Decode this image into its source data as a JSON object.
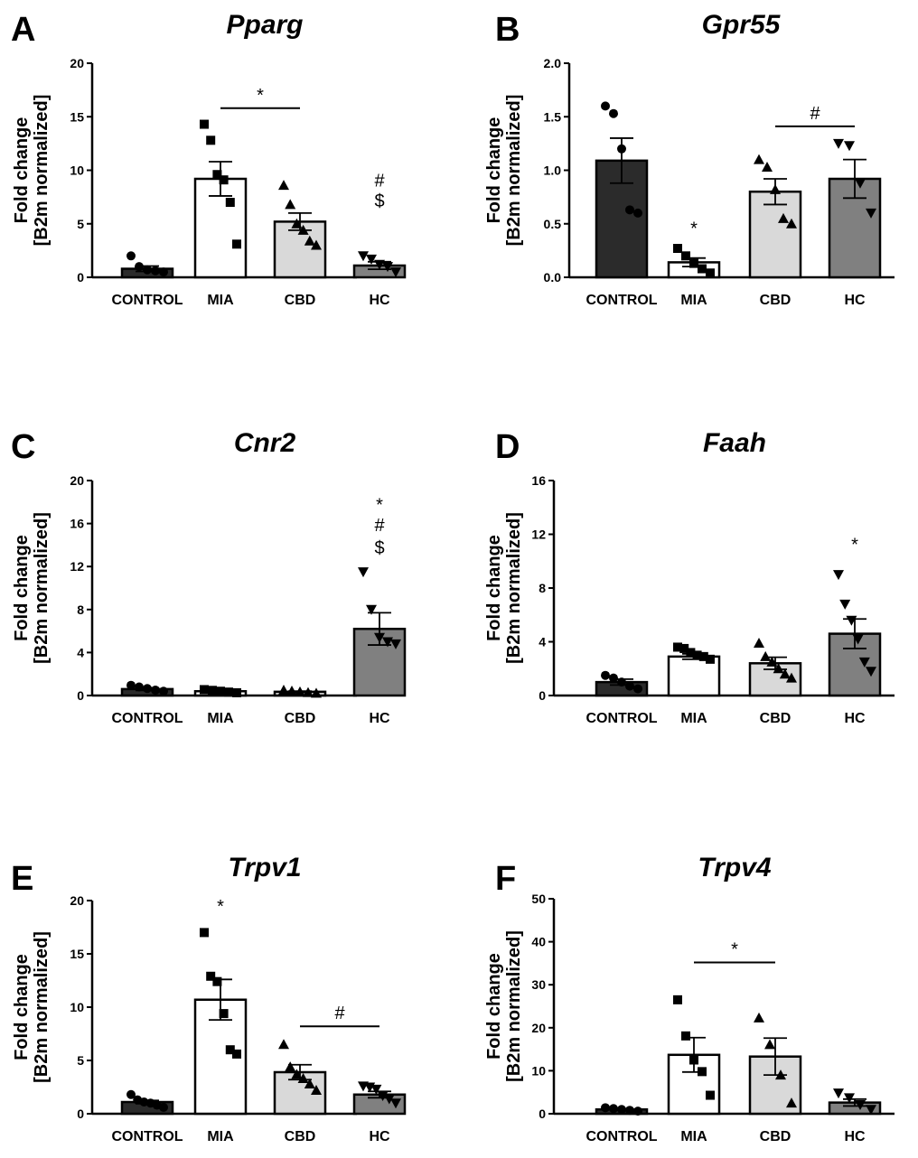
{
  "colors": {
    "CONTROL": "#2b2b2b",
    "MIA": "#ffffff",
    "CBD": "#d9d9d9",
    "HC": "#808080",
    "ink": "#000000"
  },
  "markers": {
    "CONTROL": "circle",
    "MIA": "square",
    "CBD": "triangle-up",
    "HC": "triangle-down"
  },
  "chart_data": [
    {
      "panel": "A",
      "type": "bar",
      "title": "Pparg",
      "ylabel_line1": "Fold change",
      "ylabel_line2": "[B2m normalized]",
      "xlabel": "",
      "ylim": [
        0,
        20
      ],
      "yticks": [
        0,
        5,
        10,
        15,
        20
      ],
      "tick_labels": [
        "0",
        "5",
        "10",
        "15",
        "20"
      ],
      "categories": [
        "CONTROL",
        "MIA",
        "CBD",
        "HC"
      ],
      "values": [
        0.8,
        9.2,
        5.2,
        1.1
      ],
      "sem": [
        0.25,
        1.6,
        0.8,
        0.35
      ],
      "points": [
        [
          2.0,
          1.0,
          0.7,
          0.6,
          0.5
        ],
        [
          14.3,
          12.8,
          9.6,
          9.1,
          7.0,
          3.1
        ],
        [
          8.6,
          6.8,
          5.0,
          4.4,
          3.4,
          3.0
        ],
        [
          2.0,
          1.7,
          1.2,
          1.0,
          0.5
        ]
      ],
      "annotations": [
        {
          "type": "bar",
          "from": 1,
          "to": 2,
          "y": 15.8,
          "label": "*"
        },
        {
          "type": "text",
          "at": 3,
          "y": 8.5,
          "label": "#"
        },
        {
          "type": "text",
          "at": 3,
          "y": 6.6,
          "label": "$"
        }
      ]
    },
    {
      "panel": "B",
      "type": "bar",
      "title": "Gpr55",
      "ylabel_line1": "Fold change",
      "ylabel_line2": "[B2m normalized]",
      "xlabel": "",
      "ylim": [
        0,
        2.0
      ],
      "yticks": [
        0,
        0.5,
        1.0,
        1.5,
        2.0
      ],
      "tick_labels": [
        "0.0",
        "0.5",
        "1.0",
        "1.5",
        "2.0"
      ],
      "categories": [
        "CONTROL",
        "MIA",
        "CBD",
        "HC"
      ],
      "values": [
        1.09,
        0.14,
        0.8,
        0.92
      ],
      "sem": [
        0.21,
        0.04,
        0.12,
        0.18
      ],
      "points": [
        [
          1.6,
          1.53,
          1.2,
          0.63,
          0.6
        ],
        [
          0.27,
          0.2,
          0.13,
          0.08,
          0.04
        ],
        [
          1.1,
          1.03,
          0.82,
          0.55,
          0.5
        ],
        [
          1.25,
          1.23,
          0.88,
          0.6
        ]
      ],
      "annotations": [
        {
          "type": "bar",
          "from": 2,
          "to": 3,
          "y": 1.41,
          "label": "#"
        },
        {
          "type": "text",
          "at": 1,
          "y": 0.4,
          "label": "*"
        }
      ]
    },
    {
      "panel": "C",
      "type": "bar",
      "title": "Cnr2",
      "ylabel_line1": "Fold change",
      "ylabel_line2": "[B2m normalized]",
      "xlabel": "",
      "ylim": [
        0,
        20
      ],
      "yticks": [
        0,
        4,
        8,
        12,
        16,
        20
      ],
      "tick_labels": [
        "0",
        "4",
        "8",
        "12",
        "16",
        "20"
      ],
      "categories": [
        "CONTROL",
        "MIA",
        "CBD",
        "HC"
      ],
      "values": [
        0.6,
        0.4,
        0.35,
        6.2
      ],
      "sem": [
        0.12,
        0.08,
        0.06,
        1.5
      ],
      "points": [
        [
          0.95,
          0.8,
          0.65,
          0.5,
          0.4
        ],
        [
          0.55,
          0.48,
          0.4,
          0.32,
          0.26
        ],
        [
          0.5,
          0.42,
          0.35,
          0.28,
          0.22
        ],
        [
          11.5,
          8.0,
          5.4,
          5.0,
          4.8
        ]
      ],
      "annotations": [
        {
          "type": "text",
          "at": 3,
          "y": 17.2,
          "label": "*"
        },
        {
          "type": "text",
          "at": 3,
          "y": 15.3,
          "label": "#"
        },
        {
          "type": "text",
          "at": 3,
          "y": 13.2,
          "label": "$"
        }
      ]
    },
    {
      "panel": "D",
      "type": "bar",
      "title": "Faah",
      "ylabel_line1": "Fold change",
      "ylabel_line2": "[B2m normalized]",
      "xlabel": "",
      "ylim": [
        0,
        16
      ],
      "yticks": [
        0,
        4,
        8,
        12,
        16
      ],
      "tick_labels": [
        "0",
        "4",
        "8",
        "12",
        "16"
      ],
      "categories": [
        "CONTROL",
        "MIA",
        "CBD",
        "HC"
      ],
      "values": [
        1.0,
        2.9,
        2.4,
        4.6
      ],
      "sem": [
        0.22,
        0.2,
        0.45,
        1.1
      ],
      "points": [
        [
          1.5,
          1.3,
          1.0,
          0.7,
          0.5
        ],
        [
          3.6,
          3.5,
          3.2,
          3.0,
          2.9,
          2.7
        ],
        [
          3.9,
          2.9,
          2.5,
          2.0,
          1.6,
          1.3
        ],
        [
          9.0,
          6.8,
          5.6,
          4.2,
          2.5,
          1.8
        ]
      ],
      "annotations": [
        {
          "type": "text",
          "at": 3,
          "y": 10.8,
          "label": "*"
        }
      ]
    },
    {
      "panel": "E",
      "type": "bar",
      "title": "Trpv1",
      "ylabel_line1": "Fold change",
      "ylabel_line2": "[B2m normalized]",
      "xlabel": "",
      "ylim": [
        0,
        20
      ],
      "yticks": [
        0,
        5,
        10,
        15,
        20
      ],
      "tick_labels": [
        "0",
        "5",
        "10",
        "15",
        "20"
      ],
      "categories": [
        "CONTROL",
        "MIA",
        "CBD",
        "HC"
      ],
      "values": [
        1.1,
        10.7,
        3.9,
        1.8
      ],
      "sem": [
        0.15,
        1.9,
        0.7,
        0.3
      ],
      "points": [
        [
          1.8,
          1.3,
          1.1,
          1.0,
          0.8,
          0.6
        ],
        [
          17.0,
          12.9,
          12.4,
          9.4,
          6.0,
          5.6
        ],
        [
          6.5,
          4.4,
          3.7,
          3.3,
          2.8,
          2.2
        ],
        [
          2.6,
          2.5,
          2.3,
          1.7,
          1.4,
          1.0
        ]
      ],
      "annotations": [
        {
          "type": "text",
          "at": 1,
          "y": 18.9,
          "label": "*"
        },
        {
          "type": "bar",
          "from": 2,
          "to": 3,
          "y": 8.2,
          "label": "#"
        }
      ]
    },
    {
      "panel": "F",
      "type": "bar",
      "title": "Trpv4",
      "ylabel_line1": "Fold change",
      "ylabel_line2": "[B2m normalized]",
      "xlabel": "",
      "ylim": [
        0,
        50
      ],
      "yticks": [
        0,
        10,
        20,
        30,
        40,
        50
      ],
      "tick_labels": [
        "0",
        "10",
        "20",
        "30",
        "40",
        "50"
      ],
      "categories": [
        "CONTROL",
        "MIA",
        "CBD",
        "HC"
      ],
      "values": [
        1.0,
        13.7,
        13.3,
        2.6
      ],
      "sem": [
        0.15,
        4.0,
        4.3,
        0.8
      ],
      "points": [
        [
          1.4,
          1.2,
          1.0,
          0.8,
          0.6
        ],
        [
          26.5,
          18.1,
          12.5,
          9.8,
          4.3
        ],
        [
          22.3,
          16.1,
          9.0,
          2.5
        ],
        [
          4.8,
          3.7,
          2.1,
          1.0
        ]
      ],
      "annotations": [
        {
          "type": "bar",
          "from": 1,
          "to": 2,
          "y": 35.2,
          "label": "*"
        }
      ]
    }
  ]
}
